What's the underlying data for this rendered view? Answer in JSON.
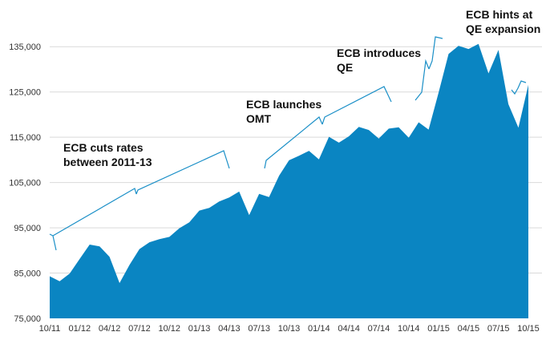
{
  "chart_data": {
    "type": "area",
    "title": "",
    "xlabel": "",
    "ylabel": "",
    "ylim": [
      75000,
      140000
    ],
    "grid": true,
    "colors": {
      "area": "#0a85c2",
      "bracket": "#1a8fc7"
    },
    "x_tick_labels": [
      "10/11",
      "01/12",
      "04/12",
      "07/12",
      "10/12",
      "01/13",
      "04/13",
      "07/13",
      "10/13",
      "01/14",
      "04/14",
      "07/14",
      "10/14",
      "01/15",
      "04/15",
      "07/15",
      "10/15"
    ],
    "y_tick_labels": [
      "75,000",
      "85,000",
      "95,000",
      "105,000",
      "115,000",
      "125,000",
      "135,000"
    ],
    "y_ticks": [
      75000,
      85000,
      95000,
      105000,
      115000,
      125000,
      135000
    ],
    "x_start": "2011-10",
    "x_end": "2015-10",
    "series": [
      {
        "x": [
          "2011-10",
          "2011-11",
          "2011-12",
          "2012-01",
          "2012-02",
          "2012-03",
          "2012-04",
          "2012-05",
          "2012-06",
          "2012-07",
          "2012-08",
          "2012-09",
          "2012-10",
          "2012-11",
          "2012-12",
          "2013-01",
          "2013-02",
          "2013-03",
          "2013-04",
          "2013-05",
          "2013-06",
          "2013-07",
          "2013-08",
          "2013-09",
          "2013-10",
          "2013-11",
          "2013-12",
          "2014-01",
          "2014-02",
          "2014-03",
          "2014-04",
          "2014-05",
          "2014-06",
          "2014-07",
          "2014-08",
          "2014-09",
          "2014-10",
          "2014-11",
          "2014-12",
          "2015-01",
          "2015-02",
          "2015-03",
          "2015-04",
          "2015-05",
          "2015-06",
          "2015-07",
          "2015-08",
          "2015-09",
          "2015-10"
        ],
        "values": [
          84300,
          83200,
          84900,
          88100,
          91300,
          90900,
          88600,
          82800,
          86800,
          90300,
          91800,
          92500,
          93000,
          94900,
          96200,
          98800,
          99400,
          100800,
          101700,
          103000,
          97800,
          102500,
          101800,
          106500,
          109900,
          110900,
          112000,
          110100,
          115100,
          113800,
          115200,
          117300,
          116600,
          114700,
          116900,
          117200,
          114900,
          118300,
          116700,
          124900,
          133400,
          135200,
          134500,
          135600,
          129100,
          134300,
          122300,
          117100,
          126600
        ]
      }
    ],
    "annotations": [
      {
        "lines": [
          "ECB cuts rates",
          "between 2011-13"
        ],
        "x_from": "2011-10",
        "x_to": "2013-05"
      },
      {
        "lines": [
          "ECB launches",
          "OMT"
        ],
        "x_from": "2013-08",
        "x_to": "2014-08"
      },
      {
        "lines": [
          "ECB introduces",
          "QE"
        ],
        "x_from": "2014-11",
        "x_to": "2015-02"
      },
      {
        "lines": [
          "ECB hints at",
          "QE expansion"
        ],
        "x_from": "2015-08",
        "x_to": "2015-10"
      }
    ]
  }
}
